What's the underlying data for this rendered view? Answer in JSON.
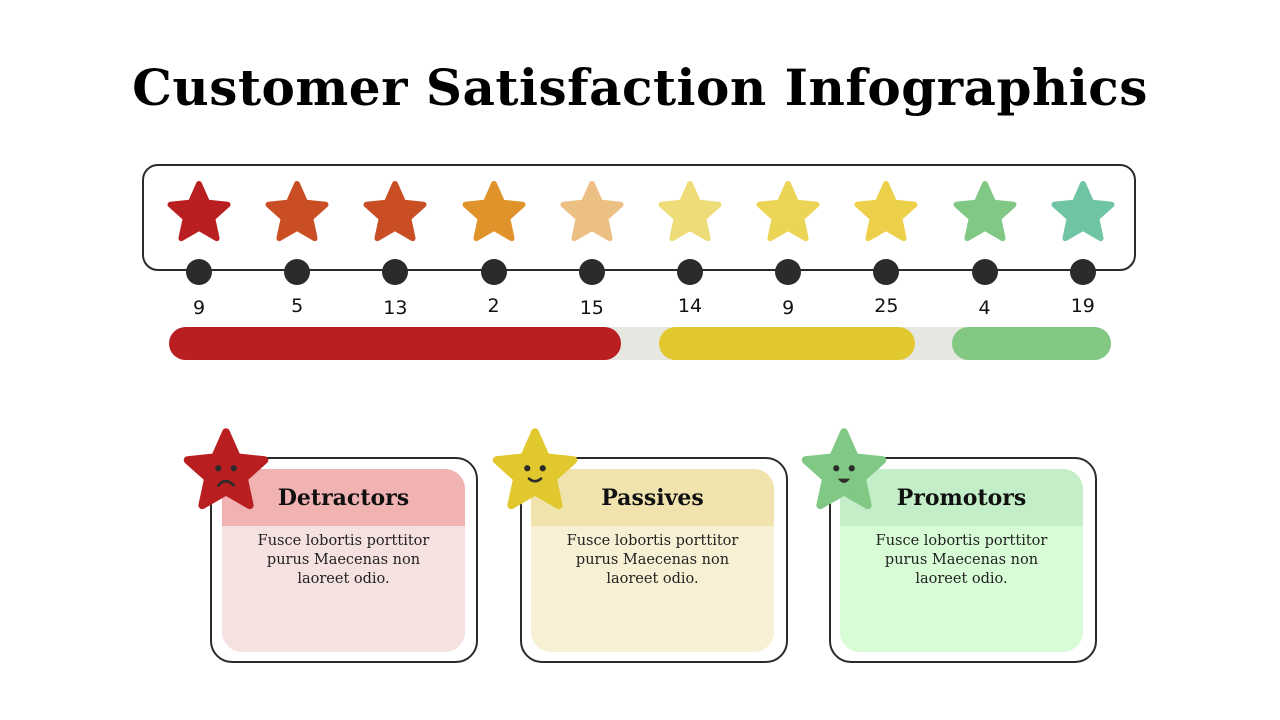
{
  "title": "Customer Satisfaction Infographics",
  "scale": [
    {
      "value": "9",
      "color": "#b91f20"
    },
    {
      "value": "5",
      "color": "#c94e24"
    },
    {
      "value": "13",
      "color": "#c94e24"
    },
    {
      "value": "2",
      "color": "#e0922b"
    },
    {
      "value": "15",
      "color": "#ecbf82"
    },
    {
      "value": "14",
      "color": "#eedc79"
    },
    {
      "value": "9",
      "color": "#ecd454"
    },
    {
      "value": "25",
      "color": "#ecd04a"
    },
    {
      "value": "4",
      "color": "#80c884"
    },
    {
      "value": "19",
      "color": "#6fc4a4"
    }
  ],
  "bars": {
    "track_color": "#e7e7e2",
    "detractors_color": "#b91f20",
    "passives_color": "#e2c82f",
    "promotors_color": "#82c882"
  },
  "cards": [
    {
      "title": "Detractors",
      "text": "Fusce lobortis porttitor purus Maecenas non laoreet odio.",
      "face": "sad-face-icon",
      "star_color": "#b91f20",
      "head_color": "#f1b2b2",
      "body_color": "#f6e1e1"
    },
    {
      "title": "Passives",
      "text": "Fusce lobortis porttitor purus Maecenas non laoreet odio.",
      "face": "neutral-face-icon",
      "star_color": "#e2c82f",
      "head_color": "#f0e3ad",
      "body_color": "#f8f0d5"
    },
    {
      "title": "Promotors",
      "text": "Fusce lobortis porttitor purus Maecenas non laoreet odio.",
      "face": "happy-face-icon",
      "star_color": "#80c884",
      "head_color": "#c3eec8",
      "body_color": "#d8fcd6"
    }
  ]
}
